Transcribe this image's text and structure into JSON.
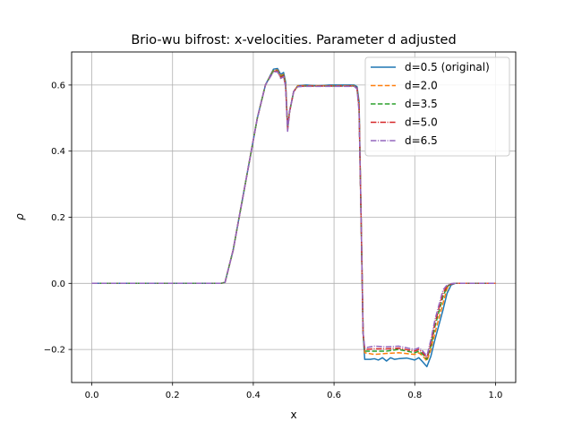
{
  "chart_data": {
    "type": "line",
    "title": "Brio-wu bifrost: x-velocities. Parameter d adjusted",
    "xlabel": "x",
    "ylabel": "ρ",
    "xlim": [
      -0.05,
      1.05
    ],
    "ylim": [
      -0.3,
      0.7
    ],
    "grid": true,
    "legend_position": "top-right",
    "xticks": [
      0.0,
      0.2,
      0.4,
      0.6,
      0.8,
      1.0
    ],
    "xtick_labels": [
      "0.0",
      "0.2",
      "0.4",
      "0.6",
      "0.8",
      "1.0"
    ],
    "yticks": [
      -0.2,
      0.0,
      0.2,
      0.4,
      0.6
    ],
    "ytick_labels": [
      "−0.2",
      "0.0",
      "0.2",
      "0.4",
      "0.6"
    ],
    "series": [
      {
        "name": "d=0.5 (original)",
        "color": "#1f77b4",
        "dash": "solid",
        "points": [
          [
            0.0,
            0.0
          ],
          [
            0.32,
            0.0
          ],
          [
            0.33,
            0.003
          ],
          [
            0.35,
            0.1
          ],
          [
            0.38,
            0.3
          ],
          [
            0.41,
            0.5
          ],
          [
            0.43,
            0.6
          ],
          [
            0.45,
            0.648
          ],
          [
            0.46,
            0.65
          ],
          [
            0.468,
            0.632
          ],
          [
            0.475,
            0.638
          ],
          [
            0.48,
            0.61
          ],
          [
            0.485,
            0.47
          ],
          [
            0.49,
            0.52
          ],
          [
            0.5,
            0.58
          ],
          [
            0.51,
            0.598
          ],
          [
            0.53,
            0.6
          ],
          [
            0.56,
            0.598
          ],
          [
            0.59,
            0.6
          ],
          [
            0.62,
            0.6
          ],
          [
            0.65,
            0.6
          ],
          [
            0.657,
            0.595
          ],
          [
            0.662,
            0.55
          ],
          [
            0.667,
            0.2
          ],
          [
            0.672,
            -0.15
          ],
          [
            0.676,
            -0.23
          ],
          [
            0.69,
            -0.23
          ],
          [
            0.7,
            -0.228
          ],
          [
            0.71,
            -0.232
          ],
          [
            0.72,
            -0.225
          ],
          [
            0.73,
            -0.235
          ],
          [
            0.74,
            -0.225
          ],
          [
            0.75,
            -0.23
          ],
          [
            0.76,
            -0.228
          ],
          [
            0.78,
            -0.226
          ],
          [
            0.8,
            -0.232
          ],
          [
            0.81,
            -0.225
          ],
          [
            0.82,
            -0.238
          ],
          [
            0.83,
            -0.252
          ],
          [
            0.84,
            -0.22
          ],
          [
            0.85,
            -0.17
          ],
          [
            0.87,
            -0.08
          ],
          [
            0.88,
            -0.03
          ],
          [
            0.89,
            -0.005
          ],
          [
            0.9,
            0.0
          ],
          [
            1.0,
            0.0
          ]
        ]
      },
      {
        "name": "d=2.0",
        "color": "#ff7f0e",
        "dash": "5.5,2.4",
        "points": [
          [
            0.0,
            0.0
          ],
          [
            0.32,
            0.0
          ],
          [
            0.33,
            0.003
          ],
          [
            0.35,
            0.1
          ],
          [
            0.38,
            0.3
          ],
          [
            0.41,
            0.5
          ],
          [
            0.43,
            0.6
          ],
          [
            0.45,
            0.645
          ],
          [
            0.46,
            0.645
          ],
          [
            0.468,
            0.628
          ],
          [
            0.475,
            0.632
          ],
          [
            0.48,
            0.605
          ],
          [
            0.485,
            0.47
          ],
          [
            0.49,
            0.52
          ],
          [
            0.5,
            0.58
          ],
          [
            0.51,
            0.598
          ],
          [
            0.53,
            0.598
          ],
          [
            0.56,
            0.598
          ],
          [
            0.59,
            0.598
          ],
          [
            0.62,
            0.598
          ],
          [
            0.65,
            0.598
          ],
          [
            0.657,
            0.59
          ],
          [
            0.662,
            0.54
          ],
          [
            0.667,
            0.2
          ],
          [
            0.672,
            -0.15
          ],
          [
            0.676,
            -0.21
          ],
          [
            0.7,
            -0.215
          ],
          [
            0.73,
            -0.212
          ],
          [
            0.76,
            -0.21
          ],
          [
            0.8,
            -0.215
          ],
          [
            0.81,
            -0.21
          ],
          [
            0.82,
            -0.22
          ],
          [
            0.83,
            -0.235
          ],
          [
            0.84,
            -0.2
          ],
          [
            0.85,
            -0.15
          ],
          [
            0.87,
            -0.06
          ],
          [
            0.88,
            -0.015
          ],
          [
            0.89,
            -0.002
          ],
          [
            0.9,
            0.0
          ],
          [
            1.0,
            0.0
          ]
        ]
      },
      {
        "name": "d=3.5",
        "color": "#2ca02c",
        "dash": "5.5,2.4",
        "points": [
          [
            0.0,
            0.0
          ],
          [
            0.32,
            0.0
          ],
          [
            0.33,
            0.003
          ],
          [
            0.35,
            0.1
          ],
          [
            0.38,
            0.3
          ],
          [
            0.41,
            0.5
          ],
          [
            0.43,
            0.6
          ],
          [
            0.45,
            0.643
          ],
          [
            0.46,
            0.643
          ],
          [
            0.468,
            0.625
          ],
          [
            0.475,
            0.63
          ],
          [
            0.48,
            0.6
          ],
          [
            0.485,
            0.47
          ],
          [
            0.49,
            0.52
          ],
          [
            0.5,
            0.58
          ],
          [
            0.51,
            0.596
          ],
          [
            0.53,
            0.597
          ],
          [
            0.56,
            0.597
          ],
          [
            0.59,
            0.597
          ],
          [
            0.62,
            0.597
          ],
          [
            0.65,
            0.597
          ],
          [
            0.657,
            0.59
          ],
          [
            0.662,
            0.53
          ],
          [
            0.667,
            0.2
          ],
          [
            0.672,
            -0.15
          ],
          [
            0.676,
            -0.205
          ],
          [
            0.7,
            -0.205
          ],
          [
            0.73,
            -0.205
          ],
          [
            0.76,
            -0.2
          ],
          [
            0.8,
            -0.21
          ],
          [
            0.81,
            -0.205
          ],
          [
            0.82,
            -0.215
          ],
          [
            0.83,
            -0.23
          ],
          [
            0.84,
            -0.19
          ],
          [
            0.85,
            -0.13
          ],
          [
            0.87,
            -0.04
          ],
          [
            0.88,
            -0.01
          ],
          [
            0.89,
            -0.002
          ],
          [
            0.9,
            0.0
          ],
          [
            1.0,
            0.0
          ]
        ]
      },
      {
        "name": "d=5.0",
        "color": "#d62728",
        "dash": "6.4,1.6,1,1.6",
        "points": [
          [
            0.0,
            0.0
          ],
          [
            0.32,
            0.0
          ],
          [
            0.33,
            0.003
          ],
          [
            0.35,
            0.1
          ],
          [
            0.38,
            0.3
          ],
          [
            0.41,
            0.5
          ],
          [
            0.43,
            0.6
          ],
          [
            0.45,
            0.642
          ],
          [
            0.46,
            0.642
          ],
          [
            0.468,
            0.623
          ],
          [
            0.475,
            0.628
          ],
          [
            0.48,
            0.598
          ],
          [
            0.485,
            0.465
          ],
          [
            0.49,
            0.52
          ],
          [
            0.5,
            0.58
          ],
          [
            0.51,
            0.596
          ],
          [
            0.53,
            0.597
          ],
          [
            0.56,
            0.597
          ],
          [
            0.59,
            0.597
          ],
          [
            0.62,
            0.597
          ],
          [
            0.65,
            0.597
          ],
          [
            0.657,
            0.59
          ],
          [
            0.662,
            0.53
          ],
          [
            0.667,
            0.2
          ],
          [
            0.672,
            -0.15
          ],
          [
            0.676,
            -0.2
          ],
          [
            0.7,
            -0.198
          ],
          [
            0.73,
            -0.198
          ],
          [
            0.76,
            -0.196
          ],
          [
            0.8,
            -0.205
          ],
          [
            0.81,
            -0.2
          ],
          [
            0.82,
            -0.21
          ],
          [
            0.83,
            -0.225
          ],
          [
            0.84,
            -0.18
          ],
          [
            0.85,
            -0.12
          ],
          [
            0.87,
            -0.03
          ],
          [
            0.88,
            -0.008
          ],
          [
            0.89,
            -0.002
          ],
          [
            0.9,
            0.0
          ],
          [
            1.0,
            0.0
          ]
        ]
      },
      {
        "name": "d=6.5",
        "color": "#9467bd",
        "dash": "6.4,1.6,1,1.6",
        "points": [
          [
            0.0,
            0.0
          ],
          [
            0.32,
            0.0
          ],
          [
            0.33,
            0.003
          ],
          [
            0.35,
            0.1
          ],
          [
            0.38,
            0.3
          ],
          [
            0.41,
            0.5
          ],
          [
            0.43,
            0.6
          ],
          [
            0.45,
            0.64
          ],
          [
            0.46,
            0.64
          ],
          [
            0.468,
            0.62
          ],
          [
            0.475,
            0.625
          ],
          [
            0.48,
            0.595
          ],
          [
            0.485,
            0.46
          ],
          [
            0.49,
            0.52
          ],
          [
            0.5,
            0.58
          ],
          [
            0.51,
            0.595
          ],
          [
            0.53,
            0.596
          ],
          [
            0.56,
            0.596
          ],
          [
            0.59,
            0.596
          ],
          [
            0.62,
            0.596
          ],
          [
            0.65,
            0.596
          ],
          [
            0.657,
            0.588
          ],
          [
            0.662,
            0.52
          ],
          [
            0.667,
            0.2
          ],
          [
            0.672,
            -0.15
          ],
          [
            0.676,
            -0.195
          ],
          [
            0.7,
            -0.19
          ],
          [
            0.73,
            -0.192
          ],
          [
            0.76,
            -0.19
          ],
          [
            0.8,
            -0.2
          ],
          [
            0.81,
            -0.195
          ],
          [
            0.82,
            -0.205
          ],
          [
            0.83,
            -0.22
          ],
          [
            0.84,
            -0.17
          ],
          [
            0.85,
            -0.11
          ],
          [
            0.87,
            -0.02
          ],
          [
            0.88,
            -0.005
          ],
          [
            0.89,
            -0.001
          ],
          [
            0.9,
            0.0
          ],
          [
            1.0,
            0.0
          ]
        ]
      }
    ]
  }
}
